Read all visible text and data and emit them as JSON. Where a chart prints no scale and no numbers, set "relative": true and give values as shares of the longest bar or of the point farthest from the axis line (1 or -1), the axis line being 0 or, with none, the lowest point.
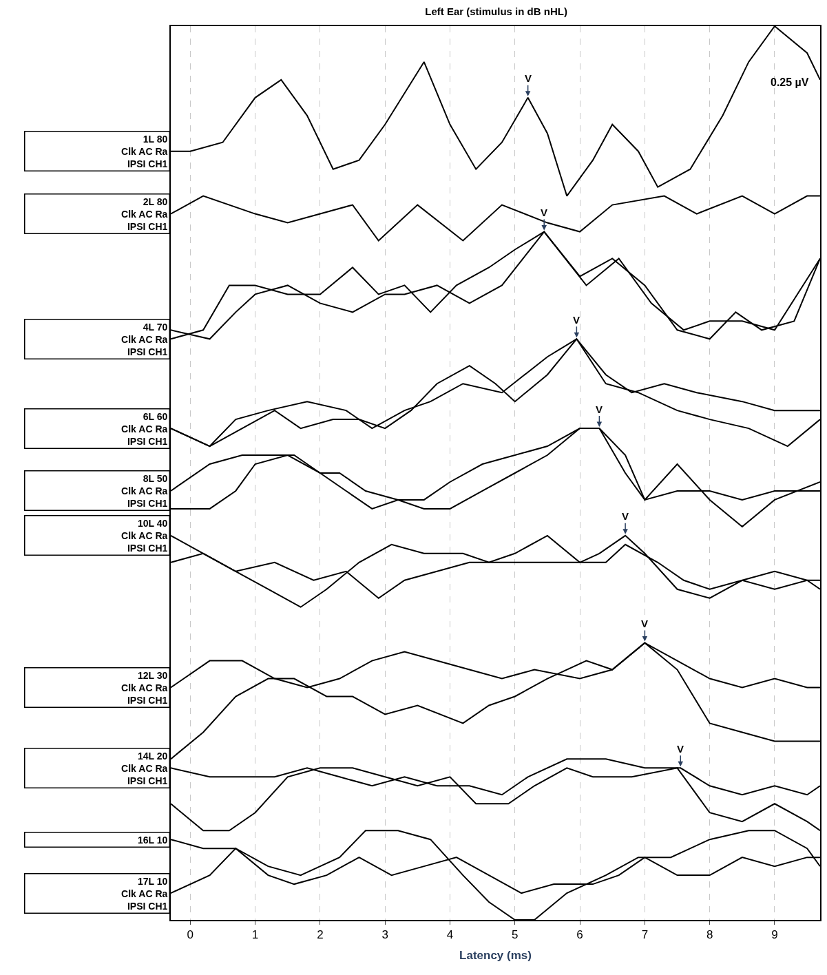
{
  "chart_data": {
    "type": "line",
    "title": "Left Ear (stimulus in dB nHL)",
    "xlabel": "Latency (ms)",
    "relative": true,
    "xlim": [
      -0.3,
      9.7
    ],
    "xticks": [
      0,
      1,
      2,
      3,
      4,
      5,
      6,
      7,
      8,
      9
    ],
    "grid": "x",
    "legend": false,
    "marker": "none",
    "line_style": "solid",
    "annotations": [
      "0.25 µV",
      {
        "text": "V",
        "x": 5.2,
        "y": 0.92
      },
      {
        "text": "V",
        "x": 5.45,
        "y": 0.77
      },
      {
        "text": "V",
        "x": 5.95,
        "y": 0.65
      },
      {
        "text": "V",
        "x": 6.3,
        "y": 0.55
      },
      {
        "text": "V",
        "x": 6.7,
        "y": 0.43
      },
      {
        "text": "V",
        "x": 7.0,
        "y": 0.31
      },
      {
        "text": "V",
        "x": 7.55,
        "y": 0.17
      }
    ],
    "series": [
      {
        "name": "1L 80\nClk AC Ra\nIPSI CH1",
        "color": "#000000",
        "x": [
          -0.3,
          0,
          0.5,
          1.0,
          1.4,
          1.8,
          2.2,
          2.6,
          3.0,
          3.6,
          4.0,
          4.4,
          4.8,
          5.2,
          5.5,
          5.8,
          6.2,
          6.5,
          6.9,
          7.2,
          7.7,
          8.2,
          8.6,
          9.0,
          9.5,
          9.7
        ],
        "values": [
          0.86,
          0.86,
          0.87,
          0.92,
          0.94,
          0.9,
          0.84,
          0.85,
          0.89,
          0.96,
          0.89,
          0.84,
          0.87,
          0.92,
          0.88,
          0.81,
          0.85,
          0.89,
          0.86,
          0.82,
          0.84,
          0.9,
          0.96,
          1.0,
          0.97,
          0.94
        ]
      },
      {
        "name": "2L 80\nClk AC Ra\nIPSI CH1",
        "color": "#000000",
        "x": [
          -0.3,
          0.2,
          1.0,
          1.5,
          2.5,
          2.9,
          3.5,
          4.2,
          4.8,
          5.5,
          6.0,
          6.5,
          7.3,
          7.8,
          8.5,
          9.0,
          9.5,
          9.7
        ],
        "values": [
          0.79,
          0.81,
          0.79,
          0.78,
          0.8,
          0.76,
          0.8,
          0.76,
          0.8,
          0.78,
          0.77,
          0.8,
          0.81,
          0.79,
          0.81,
          0.79,
          0.81,
          0.81
        ]
      },
      {
        "name": "4L 70\nClk AC Ra\nIPSI CH1",
        "color": "#000000",
        "x": [
          -0.3,
          0.2,
          0.6,
          1.0,
          1.5,
          2.0,
          2.5,
          2.9,
          3.3,
          3.7,
          4.1,
          4.6,
          5.0,
          5.45,
          6.0,
          6.5,
          7.0,
          7.5,
          8.0,
          8.4,
          8.8,
          9.3,
          9.7
        ],
        "values": [
          0.65,
          0.66,
          0.71,
          0.71,
          0.7,
          0.7,
          0.73,
          0.7,
          0.71,
          0.68,
          0.71,
          0.73,
          0.75,
          0.77,
          0.72,
          0.74,
          0.71,
          0.66,
          0.65,
          0.68,
          0.66,
          0.67,
          0.74
        ]
      },
      {
        "color": "#000000",
        "x": [
          -0.3,
          0.3,
          0.7,
          1.0,
          1.5,
          2.0,
          2.5,
          3.0,
          3.3,
          3.8,
          4.3,
          4.8,
          5.45,
          6.1,
          6.6,
          7.1,
          7.6,
          8.0,
          8.5,
          9.0,
          9.7
        ],
        "values": [
          0.66,
          0.65,
          0.68,
          0.7,
          0.71,
          0.69,
          0.68,
          0.7,
          0.7,
          0.71,
          0.69,
          0.71,
          0.77,
          0.71,
          0.74,
          0.69,
          0.66,
          0.67,
          0.67,
          0.66,
          0.74
        ]
      },
      {
        "name": "6L 60\nClk AC Ra\nIPSI CH1",
        "color": "#000000",
        "x": [
          -0.3,
          0.3,
          0.8,
          1.3,
          1.7,
          2.2,
          2.6,
          3.0,
          3.4,
          3.8,
          4.3,
          4.7,
          5.0,
          5.5,
          5.95,
          6.4,
          6.8,
          7.3,
          7.8,
          8.5,
          9.0,
          9.7
        ],
        "values": [
          0.55,
          0.53,
          0.55,
          0.57,
          0.55,
          0.56,
          0.56,
          0.55,
          0.57,
          0.6,
          0.62,
          0.6,
          0.58,
          0.61,
          0.65,
          0.61,
          0.59,
          0.6,
          0.59,
          0.58,
          0.57,
          0.57
        ]
      },
      {
        "color": "#000000",
        "x": [
          -0.3,
          0.3,
          0.7,
          1.2,
          1.8,
          2.4,
          2.8,
          3.3,
          3.7,
          4.2,
          4.8,
          5.5,
          5.95,
          6.4,
          6.9,
          7.5,
          8.0,
          8.6,
          9.2,
          9.7
        ],
        "values": [
          0.55,
          0.53,
          0.56,
          0.57,
          0.58,
          0.57,
          0.55,
          0.57,
          0.58,
          0.6,
          0.59,
          0.63,
          0.65,
          0.6,
          0.59,
          0.57,
          0.56,
          0.55,
          0.53,
          0.56
        ]
      },
      {
        "name": "8L 50\nClk AC Ra\nIPSI CH1",
        "color": "#000000",
        "x": [
          -0.3,
          0.3,
          0.8,
          1.3,
          1.6,
          2.0,
          2.4,
          2.8,
          3.2,
          3.6,
          4.0,
          4.5,
          5.0,
          5.5,
          6.0,
          6.3,
          6.7,
          7.0,
          7.5,
          8.0,
          8.5,
          9.0,
          9.7
        ],
        "values": [
          0.48,
          0.51,
          0.52,
          0.52,
          0.52,
          0.5,
          0.48,
          0.46,
          0.47,
          0.47,
          0.49,
          0.51,
          0.52,
          0.53,
          0.55,
          0.55,
          0.5,
          0.47,
          0.48,
          0.48,
          0.47,
          0.48,
          0.48
        ]
      },
      {
        "color": "#000000",
        "x": [
          -0.3,
          0.3,
          0.7,
          1.0,
          1.5,
          2.0,
          2.3,
          2.7,
          3.2,
          3.6,
          4.0,
          4.5,
          5.0,
          5.5,
          6.0,
          6.3,
          6.7,
          7.0,
          7.5,
          8.0,
          8.5,
          9.0,
          9.7
        ],
        "values": [
          0.46,
          0.46,
          0.48,
          0.51,
          0.52,
          0.5,
          0.5,
          0.48,
          0.47,
          0.46,
          0.46,
          0.48,
          0.5,
          0.52,
          0.55,
          0.55,
          0.52,
          0.47,
          0.51,
          0.47,
          0.44,
          0.47,
          0.49
        ]
      },
      {
        "name": "10L 40\nClk AC Ra\nIPSI CH1",
        "color": "#000000",
        "x": [
          -0.3,
          0.2,
          0.7,
          1.2,
          1.7,
          2.1,
          2.6,
          3.1,
          3.6,
          4.2,
          4.6,
          5.0,
          5.5,
          6.0,
          6.3,
          6.7,
          7.0,
          7.5,
          8.0,
          8.5,
          9.0,
          9.5,
          9.7
        ],
        "values": [
          0.43,
          0.41,
          0.39,
          0.37,
          0.35,
          0.37,
          0.4,
          0.42,
          0.41,
          0.41,
          0.4,
          0.41,
          0.43,
          0.4,
          0.41,
          0.43,
          0.41,
          0.37,
          0.36,
          0.38,
          0.37,
          0.38,
          0.37
        ]
      },
      {
        "color": "#000000",
        "x": [
          -0.3,
          0.2,
          0.7,
          1.3,
          1.9,
          2.4,
          2.9,
          3.3,
          3.8,
          4.3,
          4.8,
          5.4,
          6.0,
          6.4,
          6.7,
          7.2,
          7.6,
          8.0,
          8.5,
          9.0,
          9.5,
          9.7
        ],
        "values": [
          0.4,
          0.41,
          0.39,
          0.4,
          0.38,
          0.39,
          0.36,
          0.38,
          0.39,
          0.4,
          0.4,
          0.4,
          0.4,
          0.4,
          0.42,
          0.4,
          0.38,
          0.37,
          0.38,
          0.39,
          0.38,
          0.38
        ]
      },
      {
        "name": "12L 30\nClk AC Ra\nIPSI CH1",
        "color": "#000000",
        "x": [
          -0.3,
          0.3,
          0.8,
          1.3,
          1.8,
          2.3,
          2.8,
          3.3,
          3.8,
          4.3,
          4.8,
          5.3,
          6.0,
          6.5,
          7.0,
          7.5,
          8.0,
          8.5,
          9.0,
          9.5,
          9.7
        ],
        "values": [
          0.26,
          0.29,
          0.29,
          0.27,
          0.26,
          0.27,
          0.29,
          0.3,
          0.29,
          0.28,
          0.27,
          0.28,
          0.27,
          0.28,
          0.31,
          0.29,
          0.27,
          0.26,
          0.27,
          0.26,
          0.26
        ]
      },
      {
        "color": "#000000",
        "x": [
          -0.3,
          0.2,
          0.7,
          1.2,
          1.6,
          2.1,
          2.5,
          3.0,
          3.5,
          4.2,
          4.6,
          5.0,
          5.5,
          6.1,
          6.5,
          7.0,
          7.5,
          8.0,
          8.5,
          9.0,
          9.7
        ],
        "values": [
          0.18,
          0.21,
          0.25,
          0.27,
          0.27,
          0.25,
          0.25,
          0.23,
          0.24,
          0.22,
          0.24,
          0.25,
          0.27,
          0.29,
          0.28,
          0.31,
          0.28,
          0.22,
          0.21,
          0.2,
          0.2
        ]
      },
      {
        "name": "14L 20\nClk AC Ra\nIPSI CH1",
        "color": "#000000",
        "x": [
          -0.3,
          0.3,
          0.8,
          1.3,
          1.8,
          2.3,
          2.8,
          3.3,
          3.8,
          4.3,
          4.8,
          5.2,
          5.8,
          6.4,
          7.0,
          7.55,
          8.0,
          8.5,
          9.0,
          9.5,
          9.7
        ],
        "values": [
          0.17,
          0.16,
          0.16,
          0.16,
          0.17,
          0.16,
          0.15,
          0.16,
          0.15,
          0.15,
          0.14,
          0.16,
          0.18,
          0.18,
          0.17,
          0.17,
          0.15,
          0.14,
          0.15,
          0.14,
          0.15
        ]
      },
      {
        "color": "#000000",
        "x": [
          -0.3,
          0.2,
          0.6,
          1.0,
          1.5,
          2.0,
          2.5,
          3.0,
          3.5,
          4.0,
          4.4,
          4.9,
          5.3,
          5.8,
          6.2,
          6.8,
          7.5,
          8.0,
          8.5,
          9.0,
          9.5,
          9.7
        ],
        "values": [
          0.13,
          0.1,
          0.1,
          0.12,
          0.16,
          0.17,
          0.17,
          0.16,
          0.15,
          0.16,
          0.13,
          0.13,
          0.15,
          0.17,
          0.16,
          0.16,
          0.17,
          0.12,
          0.11,
          0.13,
          0.11,
          0.1
        ]
      },
      {
        "name": "16L 10",
        "color": "#000000",
        "x": [
          -0.3,
          0.2,
          0.7,
          1.2,
          1.7,
          2.3,
          2.7,
          3.2,
          3.7,
          4.2,
          4.6,
          5.0,
          5.3,
          5.8,
          6.4,
          6.9,
          7.4,
          8.0,
          8.6,
          9.0,
          9.5,
          9.7
        ],
        "values": [
          0.09,
          0.08,
          0.08,
          0.06,
          0.05,
          0.07,
          0.1,
          0.1,
          0.09,
          0.05,
          0.02,
          0.0,
          0.0,
          0.03,
          0.05,
          0.07,
          0.07,
          0.09,
          0.1,
          0.1,
          0.08,
          0.06
        ]
      },
      {
        "name": "17L 10\nClk AC Ra\nIPSI CH1",
        "color": "#000000",
        "x": [
          -0.3,
          0.3,
          0.7,
          1.2,
          1.6,
          2.1,
          2.6,
          3.1,
          3.6,
          4.1,
          4.6,
          5.1,
          5.6,
          6.2,
          6.6,
          7.0,
          7.5,
          8.0,
          8.5,
          9.0,
          9.5,
          9.7
        ],
        "values": [
          0.03,
          0.05,
          0.08,
          0.05,
          0.04,
          0.05,
          0.07,
          0.05,
          0.06,
          0.07,
          0.05,
          0.03,
          0.04,
          0.04,
          0.05,
          0.07,
          0.05,
          0.05,
          0.07,
          0.06,
          0.07,
          0.07
        ]
      }
    ]
  }
}
